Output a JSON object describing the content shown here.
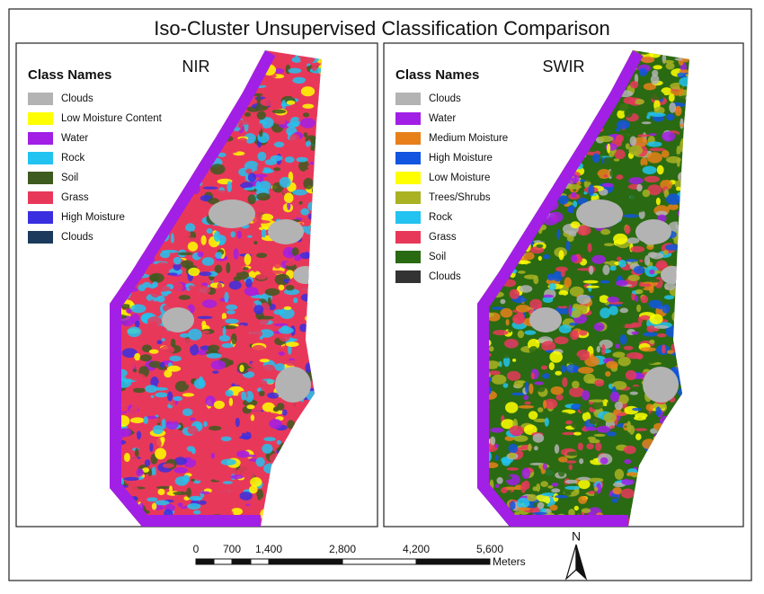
{
  "title": "Iso-Cluster Unsupervised Classification Comparison",
  "panels": [
    {
      "label": "NIR",
      "legend_title": "Class Names",
      "classes": [
        {
          "name": "Clouds",
          "color": "#b3b3b3"
        },
        {
          "name": "Low Moisture Content",
          "color": "#ffff00"
        },
        {
          "name": "Water",
          "color": "#a21fe6"
        },
        {
          "name": "Rock",
          "color": "#22c3f0"
        },
        {
          "name": "Soil",
          "color": "#3d5a1f"
        },
        {
          "name": "Grass",
          "color": "#e8385a"
        },
        {
          "name": "High Moisture",
          "color": "#3a2fe0"
        },
        {
          "name": "Clouds",
          "color": "#1b3a5c"
        }
      ]
    },
    {
      "label": "SWIR",
      "legend_title": "Class Names",
      "classes": [
        {
          "name": "Clouds",
          "color": "#b3b3b3"
        },
        {
          "name": "Water",
          "color": "#a21fe6"
        },
        {
          "name": "Medium Moisture",
          "color": "#e8801a"
        },
        {
          "name": "High Moisture",
          "color": "#1155e0"
        },
        {
          "name": "Low Moisture",
          "color": "#ffff00"
        },
        {
          "name": "Trees/Shrubs",
          "color": "#a9b223"
        },
        {
          "name": "Rock",
          "color": "#22c3f0"
        },
        {
          "name": "Grass",
          "color": "#e8385a"
        },
        {
          "name": "Soil",
          "color": "#2a6a12"
        },
        {
          "name": "Clouds",
          "color": "#333333"
        }
      ]
    }
  ],
  "scale_bar": {
    "labels": [
      "0",
      "700",
      "1,400",
      "2,800",
      "4,200",
      "5,600"
    ],
    "unit": "Meters"
  },
  "north": "N"
}
